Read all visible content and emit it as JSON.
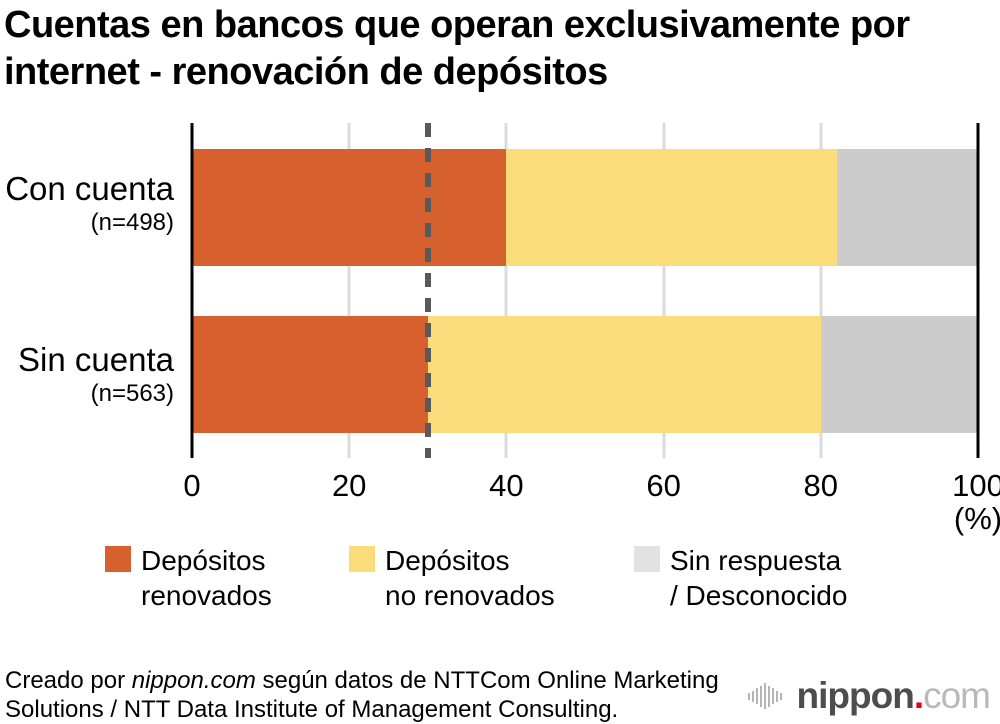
{
  "title": "Cuentas en bancos que operan exclusivamente por internet - renovación de depósitos",
  "chart_data": {
    "type": "bar",
    "orientation": "horizontal",
    "stacked": true,
    "title": "Cuentas en bancos que operan exclusivamente por internet - renovación de depósitos",
    "categories": [
      {
        "label": "Con cuenta",
        "sublabel": "(n=498)"
      },
      {
        "label": "Sin cuenta",
        "sublabel": "(n=563)"
      }
    ],
    "series": [
      {
        "name": "Depósitos renovados",
        "color": "#D7602F",
        "values": [
          40,
          30
        ]
      },
      {
        "name": "Depósitos no renovados",
        "color": "#FADC7B",
        "values": [
          42,
          50
        ]
      },
      {
        "name": "Sin respuesta / Desconocido",
        "color": "#CCCCCC",
        "values": [
          18,
          20
        ]
      }
    ],
    "xlim": [
      0,
      100
    ],
    "x_ticks": [
      "0",
      "20",
      "40",
      "60",
      "80",
      "100"
    ],
    "x_unit_label": "(%)",
    "reference_line": {
      "value": 30,
      "style": "dashed",
      "color": "#595959"
    },
    "grid": "vertical",
    "legend_position": "bottom"
  },
  "legend": {
    "items": [
      {
        "line1": "Depósitos",
        "line2": "renovados",
        "color": "#D7602F"
      },
      {
        "line1": "Depósitos",
        "line2": "no renovados",
        "color": "#FADC7B"
      },
      {
        "line1": "Sin respuesta",
        "line2": "/ Desconocido",
        "color": "#E2E2E2"
      }
    ]
  },
  "footer": {
    "prefix": "Creado por ",
    "brand": "nippon.com",
    "suffix": " según datos de NTTCom Online Marketing Solutions / NTT Data Institute of Management Consulting."
  },
  "logo": {
    "word": "nippon",
    "dot": ".",
    "tld": "com"
  }
}
